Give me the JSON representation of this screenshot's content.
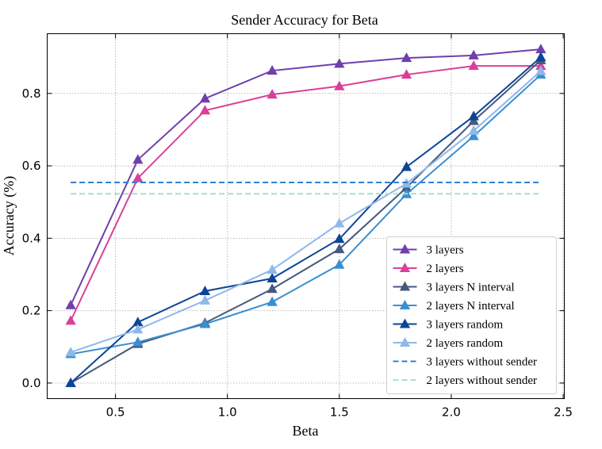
{
  "chart_data": {
    "type": "line",
    "title": "Sender Accuracy for Beta",
    "xlabel": "Beta",
    "ylabel": "Accuracy (%)",
    "xlim": [
      0.195,
      2.505
    ],
    "ylim": [
      -0.043,
      0.965
    ],
    "xticks": [
      0.5,
      1.0,
      1.5,
      2.0,
      2.5
    ],
    "xtick_labels": [
      "0.5",
      "1.0",
      "1.5",
      "2.0",
      "2.5"
    ],
    "yticks": [
      0.0,
      0.2,
      0.4,
      0.6,
      0.8
    ],
    "ytick_labels": [
      "0.0",
      "0.2",
      "0.4",
      "0.6",
      "0.8"
    ],
    "grid": true,
    "legend_position": "bottom-right",
    "x": [
      0.3,
      0.6,
      0.9,
      1.2,
      1.5,
      1.8,
      2.1,
      2.4
    ],
    "series": [
      {
        "name": "3 layers",
        "color": "#6f3fae",
        "style": "solid",
        "marker": "triangle",
        "values": [
          0.215,
          0.617,
          0.786,
          0.863,
          0.882,
          0.898,
          0.905,
          0.922
        ]
      },
      {
        "name": "2 layers",
        "color": "#d9409a",
        "style": "solid",
        "marker": "triangle",
        "values": [
          0.172,
          0.566,
          0.753,
          0.797,
          0.82,
          0.852,
          0.876,
          0.876
        ]
      },
      {
        "name": "3 layers N interval",
        "color": "#455a7c",
        "style": "solid",
        "marker": "triangle",
        "values": [
          0.0,
          0.108,
          0.166,
          0.26,
          0.37,
          0.54,
          0.724,
          0.892
        ]
      },
      {
        "name": "2 layers N interval",
        "color": "#3a8fd0",
        "style": "solid",
        "marker": "triangle",
        "values": [
          0.08,
          0.113,
          0.163,
          0.224,
          0.327,
          0.522,
          0.682,
          0.852
        ]
      },
      {
        "name": "3 layers random",
        "color": "#0d4596",
        "style": "solid",
        "marker": "triangle",
        "values": [
          0.0,
          0.168,
          0.254,
          0.289,
          0.398,
          0.597,
          0.737,
          0.9
        ]
      },
      {
        "name": "2 layers random",
        "color": "#8eb8ea",
        "style": "solid",
        "marker": "triangle",
        "values": [
          0.085,
          0.148,
          0.228,
          0.313,
          0.441,
          0.551,
          0.697,
          0.862
        ]
      },
      {
        "name": "3 layers without sender",
        "color": "#2f7fd6",
        "style": "dashed",
        "marker": "none",
        "values": [
          0.554,
          0.554,
          0.554,
          0.554,
          0.554,
          0.554,
          0.554,
          0.554
        ]
      },
      {
        "name": "2 layers without sender",
        "color": "#a6e0cc",
        "style": "dashed",
        "marker": "none",
        "values": [
          0.523,
          0.523,
          0.523,
          0.523,
          0.523,
          0.523,
          0.523,
          0.523
        ]
      }
    ]
  }
}
